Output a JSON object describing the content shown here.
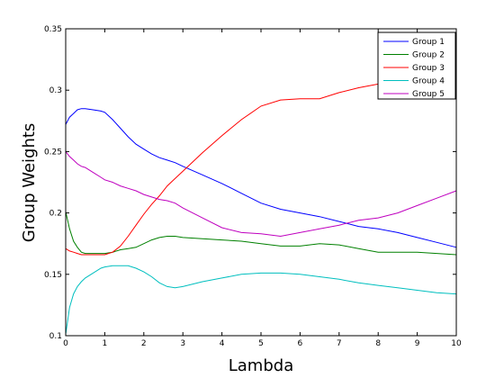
{
  "chart_data": {
    "type": "line",
    "xlabel": "Lambda",
    "ylabel": "Group Weights",
    "xlim": [
      0,
      10
    ],
    "ylim": [
      0.1,
      0.35
    ],
    "xticks": [
      0,
      1,
      2,
      3,
      4,
      5,
      6,
      7,
      8,
      9,
      10
    ],
    "yticks": [
      0.1,
      0.15,
      0.2,
      0.25,
      0.3,
      0.35
    ],
    "xtick_labels": [
      "0",
      "1",
      "2",
      "3",
      "4",
      "5",
      "6",
      "7",
      "8",
      "9",
      "10"
    ],
    "ytick_labels": [
      "0.1",
      "0.15",
      "0.2",
      "0.25",
      "0.3",
      "0.35"
    ],
    "grid": false,
    "legend_position": "top-right",
    "series": [
      {
        "name": "Group 1",
        "color": "#0000ff",
        "x": [
          0,
          0.1,
          0.2,
          0.3,
          0.4,
          0.5,
          0.7,
          0.9,
          1.0,
          1.2,
          1.4,
          1.6,
          1.8,
          2.0,
          2.2,
          2.4,
          2.6,
          2.8,
          3.0,
          3.5,
          4.0,
          4.5,
          5.0,
          5.5,
          6.0,
          6.5,
          7.0,
          7.5,
          8.0,
          8.5,
          9.0,
          9.5,
          10.0
        ],
        "y": [
          0.272,
          0.278,
          0.281,
          0.284,
          0.285,
          0.285,
          0.284,
          0.283,
          0.282,
          0.276,
          0.269,
          0.262,
          0.256,
          0.252,
          0.248,
          0.245,
          0.243,
          0.241,
          0.238,
          0.231,
          0.224,
          0.216,
          0.208,
          0.203,
          0.2,
          0.197,
          0.193,
          0.189,
          0.187,
          0.184,
          0.18,
          0.176,
          0.172
        ]
      },
      {
        "name": "Group 2",
        "color": "#008000",
        "x": [
          0,
          0.1,
          0.2,
          0.3,
          0.4,
          0.5,
          0.7,
          0.9,
          1.0,
          1.2,
          1.4,
          1.6,
          1.8,
          2.0,
          2.2,
          2.4,
          2.6,
          2.8,
          3.0,
          3.5,
          4.0,
          4.5,
          5.0,
          5.5,
          6.0,
          6.5,
          7.0,
          7.5,
          8.0,
          8.5,
          9.0,
          9.5,
          10.0
        ],
        "y": [
          0.201,
          0.187,
          0.177,
          0.172,
          0.168,
          0.167,
          0.167,
          0.167,
          0.167,
          0.168,
          0.17,
          0.171,
          0.172,
          0.175,
          0.178,
          0.18,
          0.181,
          0.181,
          0.18,
          0.179,
          0.178,
          0.177,
          0.175,
          0.173,
          0.173,
          0.175,
          0.174,
          0.171,
          0.168,
          0.168,
          0.168,
          0.167,
          0.166
        ]
      },
      {
        "name": "Group 3",
        "color": "#ff0000",
        "x": [
          0,
          0.1,
          0.2,
          0.3,
          0.4,
          0.5,
          0.7,
          0.9,
          1.0,
          1.2,
          1.4,
          1.6,
          1.8,
          2.0,
          2.2,
          2.4,
          2.6,
          2.8,
          3.0,
          3.5,
          4.0,
          4.5,
          5.0,
          5.5,
          6.0,
          6.5,
          7.0,
          7.5,
          8.0,
          8.5,
          9.0,
          9.5,
          10.0
        ],
        "y": [
          0.171,
          0.169,
          0.168,
          0.167,
          0.166,
          0.166,
          0.166,
          0.166,
          0.166,
          0.168,
          0.173,
          0.181,
          0.19,
          0.199,
          0.207,
          0.214,
          0.222,
          0.228,
          0.234,
          0.249,
          0.263,
          0.276,
          0.287,
          0.292,
          0.293,
          0.293,
          0.298,
          0.302,
          0.305,
          0.305,
          0.309,
          0.311,
          0.312
        ]
      },
      {
        "name": "Group 4",
        "color": "#00bfbf",
        "x": [
          0,
          0.1,
          0.2,
          0.3,
          0.4,
          0.5,
          0.7,
          0.9,
          1.0,
          1.2,
          1.4,
          1.6,
          1.8,
          2.0,
          2.2,
          2.4,
          2.6,
          2.8,
          3.0,
          3.5,
          4.0,
          4.5,
          5.0,
          5.5,
          6.0,
          6.5,
          7.0,
          7.5,
          8.0,
          8.5,
          9.0,
          9.5,
          10.0
        ],
        "y": [
          0.101,
          0.123,
          0.134,
          0.14,
          0.144,
          0.147,
          0.151,
          0.155,
          0.156,
          0.157,
          0.157,
          0.157,
          0.155,
          0.152,
          0.148,
          0.143,
          0.14,
          0.139,
          0.14,
          0.144,
          0.147,
          0.15,
          0.151,
          0.151,
          0.15,
          0.148,
          0.146,
          0.143,
          0.141,
          0.139,
          0.137,
          0.135,
          0.134
        ]
      },
      {
        "name": "Group 5",
        "color": "#bf00bf",
        "x": [
          0,
          0.1,
          0.2,
          0.3,
          0.4,
          0.5,
          0.7,
          0.9,
          1.0,
          1.2,
          1.4,
          1.6,
          1.8,
          2.0,
          2.2,
          2.4,
          2.6,
          2.8,
          3.0,
          3.5,
          4.0,
          4.5,
          5.0,
          5.5,
          6.0,
          6.5,
          7.0,
          7.5,
          8.0,
          8.5,
          9.0,
          9.5,
          10.0
        ],
        "y": [
          0.25,
          0.246,
          0.243,
          0.24,
          0.238,
          0.237,
          0.233,
          0.229,
          0.227,
          0.225,
          0.222,
          0.22,
          0.218,
          0.215,
          0.213,
          0.211,
          0.21,
          0.208,
          0.204,
          0.196,
          0.188,
          0.184,
          0.183,
          0.181,
          0.184,
          0.187,
          0.19,
          0.194,
          0.196,
          0.2,
          0.206,
          0.212,
          0.218
        ]
      }
    ]
  }
}
